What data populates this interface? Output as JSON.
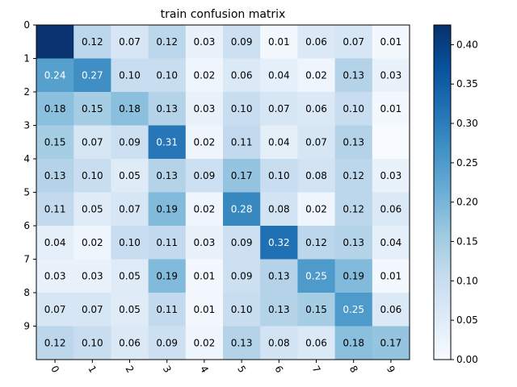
{
  "chart_data": {
    "type": "heatmap",
    "title": "train confusion matrix",
    "row_labels": [
      "0",
      "1",
      "2",
      "3",
      "4",
      "5",
      "6",
      "7",
      "8",
      "9"
    ],
    "col_labels": [
      "0",
      "1",
      "2",
      "3",
      "4",
      "5",
      "6",
      "7",
      "8",
      "9"
    ],
    "values": [
      [
        0.42,
        0.12,
        0.07,
        0.12,
        0.03,
        0.09,
        0.01,
        0.06,
        0.07,
        0.01
      ],
      [
        0.24,
        0.27,
        0.1,
        0.1,
        0.02,
        0.06,
        0.04,
        0.02,
        0.13,
        0.03
      ],
      [
        0.18,
        0.15,
        0.18,
        0.13,
        0.03,
        0.1,
        0.07,
        0.06,
        0.1,
        0.01
      ],
      [
        0.15,
        0.07,
        0.09,
        0.31,
        0.02,
        0.11,
        0.04,
        0.07,
        0.13,
        0.0
      ],
      [
        0.13,
        0.1,
        0.05,
        0.13,
        0.09,
        0.17,
        0.1,
        0.08,
        0.12,
        0.03
      ],
      [
        0.11,
        0.05,
        0.07,
        0.19,
        0.02,
        0.28,
        0.08,
        0.02,
        0.12,
        0.06
      ],
      [
        0.04,
        0.02,
        0.1,
        0.11,
        0.03,
        0.09,
        0.32,
        0.12,
        0.13,
        0.04
      ],
      [
        0.03,
        0.03,
        0.05,
        0.19,
        0.01,
        0.09,
        0.13,
        0.25,
        0.19,
        0.01
      ],
      [
        0.07,
        0.07,
        0.05,
        0.11,
        0.01,
        0.1,
        0.13,
        0.15,
        0.25,
        0.06
      ],
      [
        0.12,
        0.1,
        0.06,
        0.09,
        0.02,
        0.13,
        0.08,
        0.06,
        0.18,
        0.17
      ]
    ],
    "cell_text": [
      [
        "",
        "0.12",
        "0.07",
        "0.12",
        "0.03",
        "0.09",
        "0.01",
        "0.06",
        "0.07",
        "0.01"
      ],
      [
        "0.24",
        "0.27",
        "0.10",
        "0.10",
        "0.02",
        "0.06",
        "0.04",
        "0.02",
        "0.13",
        "0.03"
      ],
      [
        "0.18",
        "0.15",
        "0.18",
        "0.13",
        "0.03",
        "0.10",
        "0.07",
        "0.06",
        "0.10",
        "0.01"
      ],
      [
        "0.15",
        "0.07",
        "0.09",
        "0.31",
        "0.02",
        "0.11",
        "0.04",
        "0.07",
        "0.13",
        ""
      ],
      [
        "0.13",
        "0.10",
        "0.05",
        "0.13",
        "0.09",
        "0.17",
        "0.10",
        "0.08",
        "0.12",
        "0.03"
      ],
      [
        "0.11",
        "0.05",
        "0.07",
        "0.19",
        "0.02",
        "0.28",
        "0.08",
        "0.02",
        "0.12",
        "0.06"
      ],
      [
        "0.04",
        "0.02",
        "0.10",
        "0.11",
        "0.03",
        "0.09",
        "0.32",
        "0.12",
        "0.13",
        "0.04"
      ],
      [
        "0.03",
        "0.03",
        "0.05",
        "0.19",
        "0.01",
        "0.09",
        "0.13",
        "0.25",
        "0.19",
        "0.01"
      ],
      [
        "0.07",
        "0.07",
        "0.05",
        "0.11",
        "0.01",
        "0.10",
        "0.13",
        "0.15",
        "0.25",
        "0.06"
      ],
      [
        "0.12",
        "0.10",
        "0.06",
        "0.09",
        "0.02",
        "0.13",
        "0.08",
        "0.06",
        "0.18",
        "0.17"
      ]
    ],
    "colormap": "Blues",
    "color_range": [
      0.0,
      0.425
    ],
    "colorbar_ticks": [
      "0.00",
      "0.05",
      "0.10",
      "0.15",
      "0.20",
      "0.25",
      "0.30",
      "0.35",
      "0.40"
    ],
    "colorbar_tick_values": [
      0.0,
      0.05,
      0.1,
      0.15,
      0.2,
      0.25,
      0.3,
      0.35,
      0.4
    ],
    "xtick_rotation_deg": 60,
    "text_dark": "#000000",
    "text_light": "#ffffff"
  }
}
